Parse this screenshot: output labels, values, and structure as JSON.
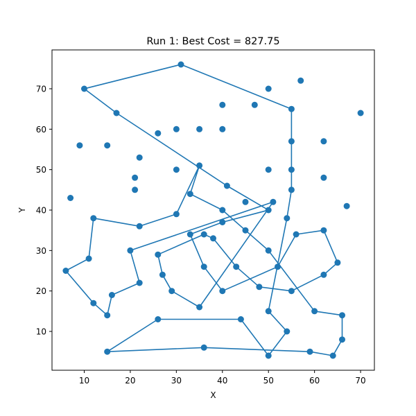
{
  "chart_data": {
    "type": "line",
    "title": "Run 1: Best Cost = 827.75",
    "xlabel": "X",
    "ylabel": "Y",
    "xlim": [
      3,
      73
    ],
    "ylim": [
      0.4,
      79.6
    ],
    "xticks": [
      10,
      20,
      30,
      40,
      50,
      60,
      70
    ],
    "yticks": [
      10,
      20,
      30,
      40,
      50,
      60,
      70
    ],
    "grid": false,
    "legend": "none",
    "colors": {
      "series": "#1f77b4"
    },
    "series": [
      {
        "marker": "circle",
        "points": [
          [
            31,
            76
          ],
          [
            55,
            65
          ],
          [
            55,
            57
          ],
          [
            55,
            50
          ],
          [
            55,
            45
          ],
          [
            54,
            38
          ],
          [
            50,
            15
          ],
          [
            54,
            10
          ],
          [
            50,
            4
          ],
          [
            44,
            13
          ],
          [
            26,
            13
          ],
          [
            15,
            5
          ],
          [
            36,
            6
          ],
          [
            59,
            5
          ],
          [
            64,
            4
          ],
          [
            66,
            8
          ],
          [
            66,
            14
          ],
          [
            60,
            15
          ],
          [
            50,
            30
          ],
          [
            45,
            35
          ],
          [
            40,
            40
          ],
          [
            33,
            44
          ],
          [
            35,
            51
          ],
          [
            30,
            39
          ],
          [
            22,
            36
          ],
          [
            12,
            38
          ],
          [
            11,
            28
          ],
          [
            6,
            25
          ],
          [
            12,
            17
          ],
          [
            15,
            14
          ],
          [
            16,
            19
          ],
          [
            22,
            22
          ],
          [
            20,
            30
          ],
          [
            51,
            42
          ],
          [
            35,
            16
          ],
          [
            29,
            20
          ],
          [
            27,
            24
          ],
          [
            26,
            29
          ],
          [
            36,
            34
          ],
          [
            38,
            33
          ],
          [
            43,
            26
          ],
          [
            48,
            21
          ],
          [
            55,
            20
          ],
          [
            62,
            24
          ],
          [
            65,
            27
          ],
          [
            62,
            35
          ],
          [
            56,
            34
          ],
          [
            52,
            26
          ],
          [
            40,
            20
          ],
          [
            36,
            26
          ],
          [
            33,
            34
          ],
          [
            40,
            37
          ],
          [
            50,
            40
          ],
          [
            41,
            46
          ],
          [
            17,
            64
          ],
          [
            10,
            70
          ],
          [
            31,
            76
          ]
        ],
        "extra_points": [
          [
            57,
            72
          ],
          [
            70,
            64
          ],
          [
            62,
            57
          ],
          [
            62,
            48
          ],
          [
            67,
            41
          ],
          [
            50,
            70
          ],
          [
            47,
            66
          ],
          [
            40,
            66
          ],
          [
            35,
            60
          ],
          [
            40,
            60
          ],
          [
            45,
            42
          ],
          [
            50,
            50
          ],
          [
            26,
            59
          ],
          [
            30,
            60
          ],
          [
            30,
            50
          ],
          [
            15,
            56
          ],
          [
            9,
            56
          ],
          [
            7,
            43
          ],
          [
            21,
            45
          ],
          [
            21,
            48
          ],
          [
            22,
            53
          ]
        ]
      }
    ]
  }
}
